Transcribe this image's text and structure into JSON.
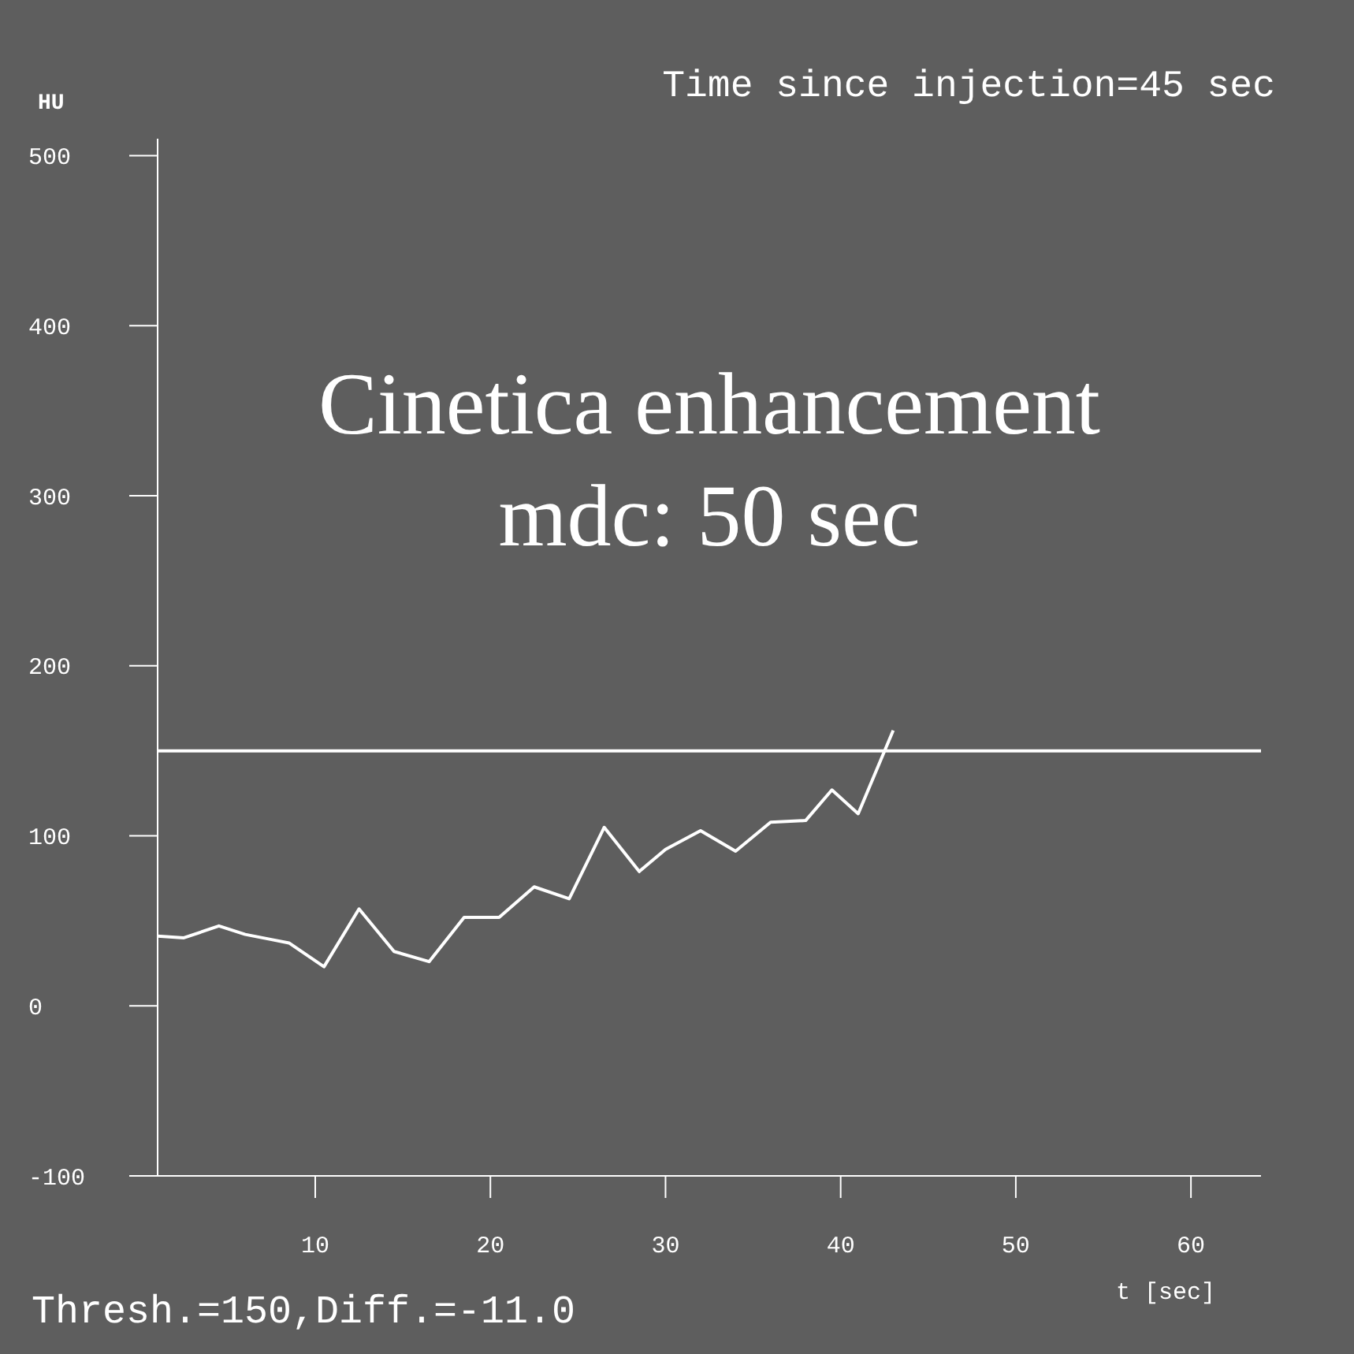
{
  "chart_data": {
    "type": "line",
    "title": "Time since injection=45 sec",
    "xlabel": "t [sec]",
    "ylabel": "HU",
    "annotations": [
      "Cinetica enhancement\nmdc: 50 sec",
      "Thresh.=150,Diff.=-11.0"
    ],
    "x": [
      1,
      2.5,
      4.5,
      6,
      7.5,
      8.5,
      10.5,
      12.5,
      14.5,
      16.5,
      18.5,
      20.5,
      22.5,
      24.5,
      26.5,
      28.5,
      30,
      32,
      34,
      36,
      38,
      39.5,
      41,
      43
    ],
    "series": [
      {
        "color": "#ffffff",
        "values": [
          41,
          40,
          47,
          42,
          39,
          37,
          23,
          57,
          32,
          26,
          52,
          52,
          70,
          63,
          105,
          79,
          92,
          103,
          91,
          108,
          109,
          127,
          113,
          162
        ]
      }
    ],
    "xlim": [
      1,
      64
    ],
    "ylim": [
      -100,
      510
    ],
    "xticks": [
      10,
      20,
      30,
      40,
      50,
      60
    ],
    "yticks": [
      -100,
      0,
      100,
      200,
      300,
      400,
      500
    ],
    "ref_lines": [
      {
        "axis": "y",
        "value": 150,
        "color": "#ffffff"
      }
    ],
    "grid": false,
    "legend": false,
    "marker": "none",
    "line_style": "solid"
  }
}
